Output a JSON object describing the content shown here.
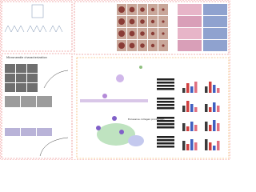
{
  "panels": {
    "characterization": {
      "label": "Microneedle characterization"
    },
    "mechanism": {
      "label": "Excessive collagen production"
    }
  }
}
